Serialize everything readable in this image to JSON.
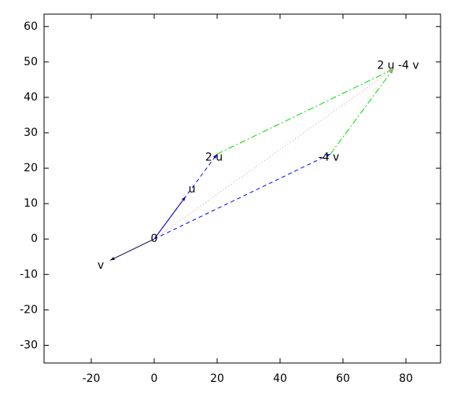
{
  "chart_data": {
    "type": "vector",
    "xlim": [
      -35,
      91
    ],
    "ylim": [
      -35,
      63.5
    ],
    "xticks": [
      -20,
      0,
      20,
      40,
      60,
      80
    ],
    "yticks": [
      -30,
      -20,
      -10,
      0,
      10,
      20,
      30,
      40,
      50,
      60
    ],
    "series": [
      {
        "color": "#000080",
        "dash": "solid",
        "x": [
          0,
          10
        ],
        "y": [
          0,
          12
        ]
      },
      {
        "color": "#000040",
        "dash": "solid",
        "x": [
          0,
          -14
        ],
        "y": [
          0,
          -6
        ]
      },
      {
        "color": "#0000ff",
        "dash": "dashed",
        "x": [
          0,
          20
        ],
        "y": [
          0,
          24
        ]
      },
      {
        "color": "#0000ff",
        "dash": "dashed",
        "x": [
          0,
          56
        ],
        "y": [
          0,
          24
        ]
      },
      {
        "color": "#00dd00",
        "dash": "dashdot",
        "x": [
          20,
          76
        ],
        "y": [
          24,
          48
        ]
      },
      {
        "color": "#00dd00",
        "dash": "dashdot",
        "x": [
          56,
          76
        ],
        "y": [
          24,
          48
        ]
      },
      {
        "color": "#e09090",
        "dash": "dotted",
        "x": [
          0,
          76
        ],
        "y": [
          0,
          48
        ]
      }
    ],
    "annotations": [
      {
        "text": "0",
        "x": 0,
        "y": 0
      },
      {
        "text": "u",
        "x": 12,
        "y": 14
      },
      {
        "text": "2 u",
        "x": 19,
        "y": 23
      },
      {
        "text": "v",
        "x": -17,
        "y": -7.5
      },
      {
        "text": "-4 v",
        "x": 55.5,
        "y": 23
      },
      {
        "text": "2 u -4 v",
        "x": 77.5,
        "y": 49
      }
    ]
  }
}
